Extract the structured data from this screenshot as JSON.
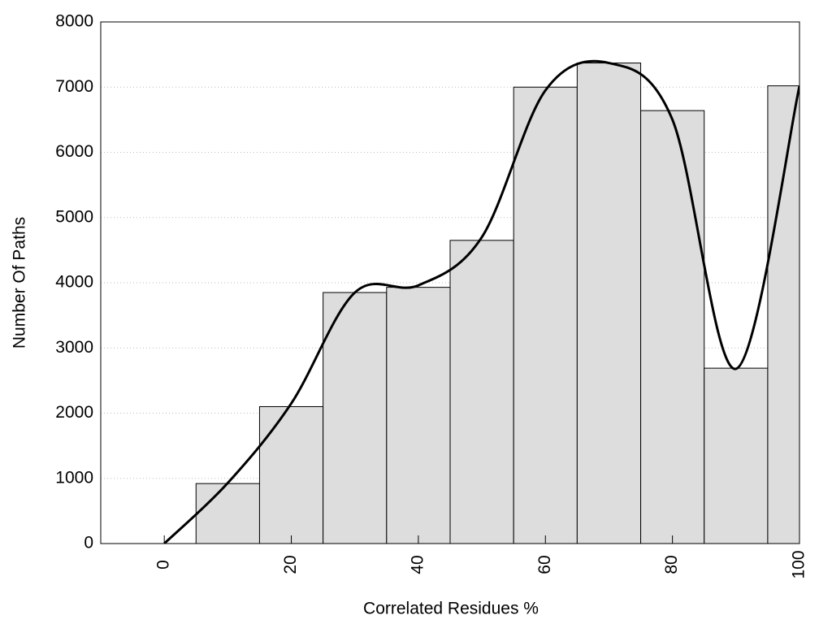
{
  "chart_data": [
    {
      "type": "histogram",
      "x_label": "Correlated Residues %",
      "y_label": "Number Of Paths",
      "bins": [
        -5,
        5,
        15,
        25,
        35,
        45,
        55,
        65,
        75,
        85,
        95,
        105
      ],
      "values": [
        0,
        920,
        2100,
        3850,
        3930,
        4650,
        7000,
        7370,
        6640,
        2690,
        7020
      ],
      "color": "#dddddd",
      "xlim": [
        -10,
        100
      ],
      "xticks": [
        0,
        20,
        40,
        60,
        80,
        100
      ],
      "ylim": [
        0,
        8000
      ],
      "yticks": [
        0,
        1000,
        2000,
        3000,
        4000,
        5000,
        6000,
        7000,
        8000
      ],
      "grid": true
    },
    {
      "type": "line",
      "x": [
        0,
        10,
        20,
        30,
        40,
        50,
        60,
        70,
        80,
        90,
        100
      ],
      "values": [
        0,
        930,
        2150,
        3850,
        3960,
        4700,
        6950,
        7370,
        6500,
        2680,
        7020
      ],
      "color": "#000000",
      "smooth": true,
      "xlim": [
        -10,
        100
      ],
      "ylim": [
        0,
        8000
      ]
    }
  ]
}
